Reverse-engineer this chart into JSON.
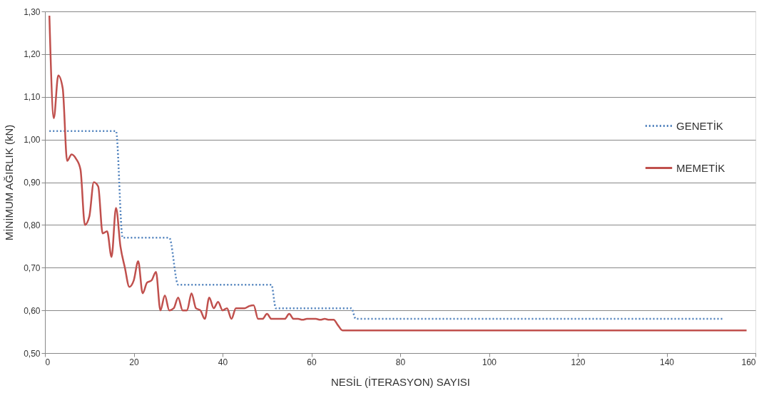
{
  "chart_data": {
    "type": "line",
    "xlabel": "NESİL (İTERASYON) SAYISI",
    "ylabel": "MİNİMUM AĞIRLIK (kN)",
    "xlim": [
      0,
      160
    ],
    "xticks": [
      0,
      20,
      40,
      60,
      80,
      100,
      120,
      140,
      160
    ],
    "ylim": [
      0.5,
      1.3
    ],
    "yticks": [
      {
        "value": 0.5,
        "label": "0,50"
      },
      {
        "value": 0.6,
        "label": "0,60"
      },
      {
        "value": 0.7,
        "label": "0,70"
      },
      {
        "value": 0.8,
        "label": "0,80"
      },
      {
        "value": 0.9,
        "label": "0,90"
      },
      {
        "value": 1.0,
        "label": "1,00"
      },
      {
        "value": 1.1,
        "label": "1,10"
      },
      {
        "value": 1.2,
        "label": "1,20"
      },
      {
        "value": 1.3,
        "label": "1,30"
      }
    ],
    "grid": "y",
    "legend": "right",
    "marker": "none",
    "series": [
      {
        "name": "GENETİK",
        "color": "#4f81bd",
        "line_style": "dotted",
        "x": [
          1,
          16,
          17.5,
          28,
          30,
          51,
          52,
          69,
          70,
          153
        ],
        "values": [
          1.02,
          1.02,
          0.77,
          0.77,
          0.66,
          0.66,
          0.605,
          0.605,
          0.58,
          0.58
        ]
      },
      {
        "name": "MEMETİK",
        "color": "#c0504d",
        "line_style": "solid",
        "x": [
          1,
          2,
          3,
          4,
          5,
          6,
          7,
          8,
          9,
          10,
          11,
          12,
          13,
          14,
          15,
          16,
          17,
          18,
          19,
          20,
          21,
          22,
          23,
          24,
          25,
          26,
          27,
          28,
          29,
          30,
          31,
          32,
          33,
          34,
          35,
          36,
          37,
          38,
          39,
          40,
          41,
          42,
          43,
          44,
          45,
          46,
          47,
          48,
          49,
          50,
          51,
          52,
          53,
          54,
          55,
          56,
          57,
          58,
          59,
          60,
          61,
          62,
          63,
          64,
          65,
          66,
          67,
          158
        ],
        "values": [
          1.29,
          1.05,
          1.15,
          1.12,
          0.95,
          0.965,
          0.955,
          0.93,
          0.8,
          0.82,
          0.9,
          0.89,
          0.78,
          0.785,
          0.725,
          0.84,
          0.75,
          0.7,
          0.655,
          0.67,
          0.715,
          0.64,
          0.665,
          0.67,
          0.69,
          0.6,
          0.635,
          0.6,
          0.605,
          0.63,
          0.6,
          0.6,
          0.64,
          0.605,
          0.6,
          0.58,
          0.63,
          0.605,
          0.62,
          0.6,
          0.605,
          0.58,
          0.605,
          0.605,
          0.605,
          0.61,
          0.612,
          0.58,
          0.58,
          0.592,
          0.58,
          0.58,
          0.58,
          0.58,
          0.592,
          0.58,
          0.58,
          0.578,
          0.58,
          0.58,
          0.58,
          0.578,
          0.58,
          0.578,
          0.578,
          0.565,
          0.553,
          0.553
        ]
      }
    ]
  }
}
